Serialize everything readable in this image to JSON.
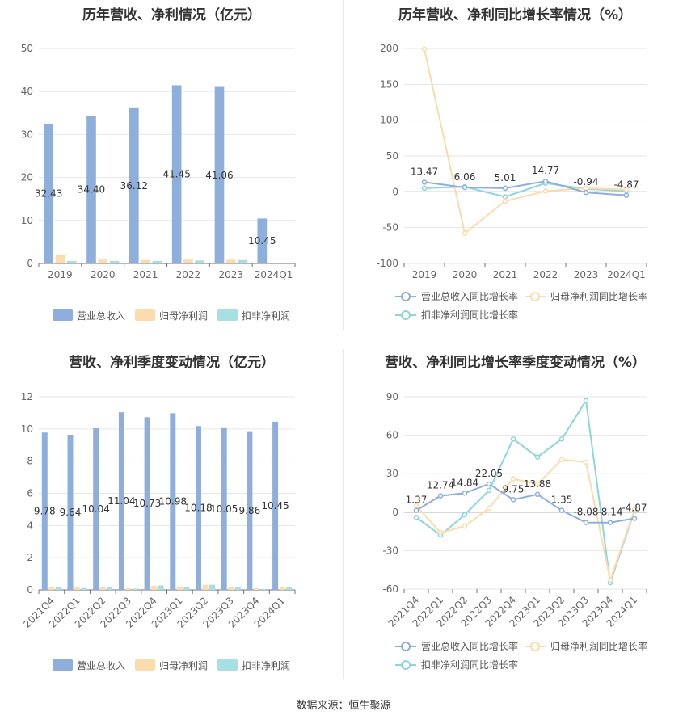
{
  "source": "数据来源：恒生聚源",
  "colors": {
    "revenue": "#8eaedc",
    "parent": "#fbdcad",
    "deducted": "#a6e0e3",
    "revenue_line": "#8eaedc",
    "parent_line": "#fbdcad",
    "deducted_line": "#8ed6da"
  },
  "chart_data": [
    {
      "id": "annual-bar",
      "type": "bar",
      "title": "历年营收、净利情况（亿元）",
      "categories": [
        "2019",
        "2020",
        "2021",
        "2022",
        "2023",
        "2024Q1"
      ],
      "ylim": [
        0,
        50
      ],
      "yticks": [
        0,
        10,
        20,
        30,
        40,
        50
      ],
      "series": [
        {
          "name": "营业总收入",
          "values": [
            32.43,
            34.4,
            36.12,
            41.45,
            41.06,
            10.45
          ],
          "labels": [
            "32.43",
            "34.40",
            "36.12",
            "41.45",
            "41.06",
            "10.45"
          ]
        },
        {
          "name": "归母净利润",
          "values": [
            2.1,
            0.9,
            0.8,
            0.9,
            0.9,
            0.2
          ]
        },
        {
          "name": "扣非净利润",
          "values": [
            0.6,
            0.6,
            0.6,
            0.7,
            0.8,
            0.2
          ]
        }
      ],
      "legend_position": "bottom"
    },
    {
      "id": "annual-line",
      "type": "line",
      "title": "历年营收、净利同比增长率情况（%）",
      "categories": [
        "2019",
        "2020",
        "2021",
        "2022",
        "2023",
        "2024Q1"
      ],
      "ylim": [
        -100,
        200
      ],
      "yticks": [
        -100,
        -50,
        0,
        50,
        100,
        150,
        200
      ],
      "series": [
        {
          "name": "营业总收入同比增长率",
          "values": [
            13.47,
            6.06,
            5.01,
            14.77,
            -0.94,
            -4.87
          ],
          "labels": [
            "13.47",
            "6.06",
            "5.01",
            "14.77",
            "-0.94",
            "-4.87"
          ]
        },
        {
          "name": "归母净利润同比增长率",
          "values": [
            199,
            -58,
            -13,
            1,
            5,
            3
          ]
        },
        {
          "name": "扣非净利润同比增长率",
          "values": [
            5,
            7,
            -7,
            12,
            4,
            1
          ]
        }
      ],
      "legend_position": "bottom"
    },
    {
      "id": "quarter-bar",
      "type": "bar",
      "title": "营收、净利季度变动情况（亿元）",
      "categories": [
        "2021Q4",
        "2022Q1",
        "2022Q2",
        "2022Q3",
        "2022Q4",
        "2023Q1",
        "2023Q2",
        "2023Q3",
        "2023Q4",
        "2024Q1"
      ],
      "ylim": [
        0,
        12
      ],
      "yticks": [
        0,
        2,
        4,
        6,
        8,
        10,
        12
      ],
      "series": [
        {
          "name": "营业总收入",
          "values": [
            9.78,
            9.64,
            10.04,
            11.04,
            10.73,
            10.98,
            10.18,
            10.05,
            9.86,
            10.45
          ],
          "labels": [
            "9.78",
            "9.64",
            "10.04",
            "11.04",
            "10.73",
            "10.98",
            "10.18",
            "10.05",
            "9.86",
            "10.45"
          ]
        },
        {
          "name": "归母净利润",
          "values": [
            0.2,
            0.15,
            0.2,
            0.1,
            0.25,
            0.2,
            0.32,
            0.18,
            0.1,
            0.2
          ]
        },
        {
          "name": "扣非净利润",
          "values": [
            0.18,
            0.12,
            0.2,
            0.08,
            0.28,
            0.18,
            0.32,
            0.2,
            0.06,
            0.2
          ]
        }
      ],
      "legend_position": "bottom"
    },
    {
      "id": "quarter-line",
      "type": "line",
      "title": "营收、净利同比增长率季度变动情况（%）",
      "categories": [
        "2021Q4",
        "2022Q1",
        "2022Q2",
        "2022Q3",
        "2022Q4",
        "2023Q1",
        "2023Q2",
        "2023Q3",
        "2023Q4",
        "2024Q1"
      ],
      "ylim": [
        -60,
        90
      ],
      "yticks": [
        -60,
        -30,
        0,
        30,
        60,
        90
      ],
      "series": [
        {
          "name": "营业总收入同比增长率",
          "values": [
            1.37,
            12.74,
            14.84,
            22.05,
            9.75,
            13.88,
            1.35,
            -8.08,
            -8.14,
            -4.87
          ],
          "labels": [
            "1.37",
            "12.74",
            "14.84",
            "22.05",
            "9.75",
            "13.88",
            "1.35",
            "-8.08",
            "-8.14",
            "-4.87"
          ]
        },
        {
          "name": "归母净利润同比增长率",
          "values": [
            5,
            -16,
            -11,
            3,
            26,
            22,
            41,
            39,
            -53,
            2
          ]
        },
        {
          "name": "扣非净利润同比增长率",
          "values": [
            -4,
            -18,
            -2,
            17,
            57,
            43,
            57,
            87,
            -55,
            1
          ]
        }
      ],
      "legend_position": "bottom"
    }
  ]
}
